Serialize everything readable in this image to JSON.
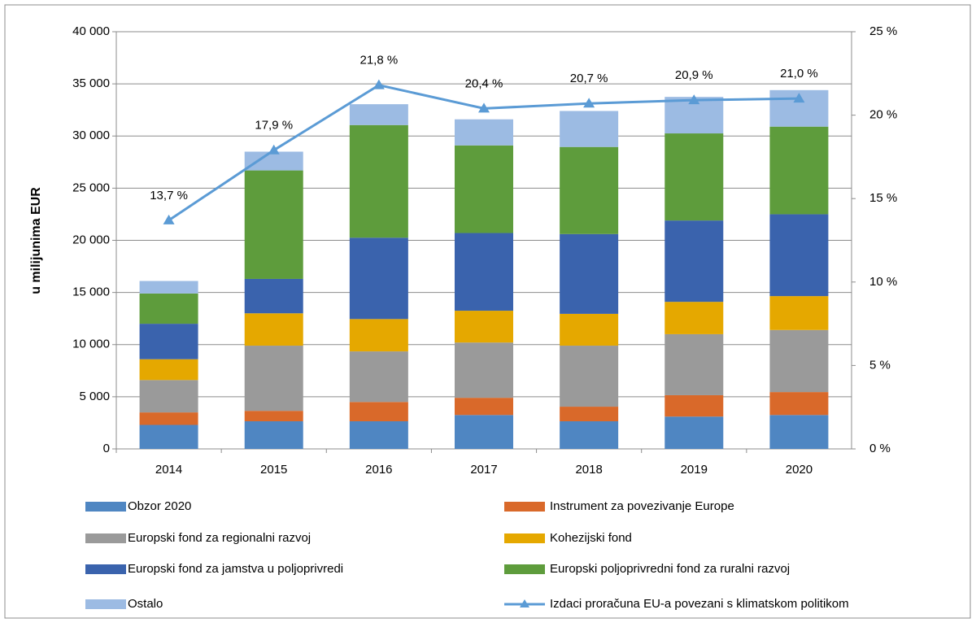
{
  "chart_data": {
    "type": "bar_line",
    "y_label": "u milijunima EUR",
    "categories": [
      "2014",
      "2015",
      "2016",
      "2017",
      "2018",
      "2019",
      "2020"
    ],
    "series": [
      {
        "name": "Obzor 2020",
        "color": "#4f86c2",
        "values": [
          2300,
          2650,
          2650,
          3250,
          2650,
          3100,
          3250
        ]
      },
      {
        "name": "Instrument za povezivanje Europe",
        "color": "#d9692a",
        "values": [
          1200,
          1000,
          1850,
          1650,
          1400,
          2050,
          2200
        ]
      },
      {
        "name": "Europski fond za regionalni razvoj",
        "color": "#9a9a9a",
        "values": [
          3100,
          6250,
          4850,
          5300,
          5850,
          5850,
          5950
        ]
      },
      {
        "name": "Kohezijski fond",
        "color": "#e5a800",
        "values": [
          2000,
          3100,
          3100,
          3050,
          3050,
          3100,
          3250
        ]
      },
      {
        "name": "Europski fond za jamstva u poljoprivredi",
        "color": "#3a63ad",
        "values": [
          3400,
          3300,
          7800,
          7450,
          7650,
          7800,
          7850
        ]
      },
      {
        "name": "Europski poljoprivredni fond za ruralni razvoj",
        "color": "#5e9c3c",
        "values": [
          2900,
          10400,
          10800,
          8400,
          8350,
          8350,
          8400
        ]
      },
      {
        "name": "Ostalo",
        "color": "#9cbbe3",
        "values": [
          1200,
          1800,
          2000,
          2500,
          3450,
          3500,
          3500
        ]
      },
      {
        "name": "Izdaci proračuna EU-a povezani s klimatskom politikom",
        "color": "#5b9bd5",
        "axis": "y2",
        "type": "line",
        "values": [
          13.7,
          17.9,
          21.8,
          20.4,
          20.7,
          20.9,
          21.0
        ],
        "value_labels": [
          "13,7 %",
          "17,9 %",
          "21,8 %",
          "20,4 %",
          "20,7 %",
          "20,9 %",
          "21,0 %"
        ]
      }
    ],
    "ylim": [
      0,
      40000
    ],
    "yticks": [
      0,
      {
        "value": 5000,
        "label": "5 000"
      },
      {
        "value": 10000,
        "label": "10 000"
      },
      {
        "value": 15000,
        "label": "15 000"
      },
      {
        "value": 20000,
        "label": "20 000"
      },
      {
        "value": 25000,
        "label": "25 000"
      },
      {
        "value": 30000,
        "label": "30 000"
      },
      {
        "value": 35000,
        "label": "35 000"
      },
      {
        "value": 40000,
        "label": "40 000"
      }
    ],
    "y2lim": [
      0,
      25
    ],
    "y2ticks": [
      {
        "value": 0,
        "label": "0 %"
      },
      {
        "value": 5,
        "label": "5 %"
      },
      {
        "value": 10,
        "label": "10 %"
      },
      {
        "value": 15,
        "label": "15 %"
      },
      {
        "value": 20,
        "label": "20 %"
      },
      {
        "value": 25,
        "label": "25 %"
      }
    ],
    "grid": true,
    "legend": "bottom"
  }
}
